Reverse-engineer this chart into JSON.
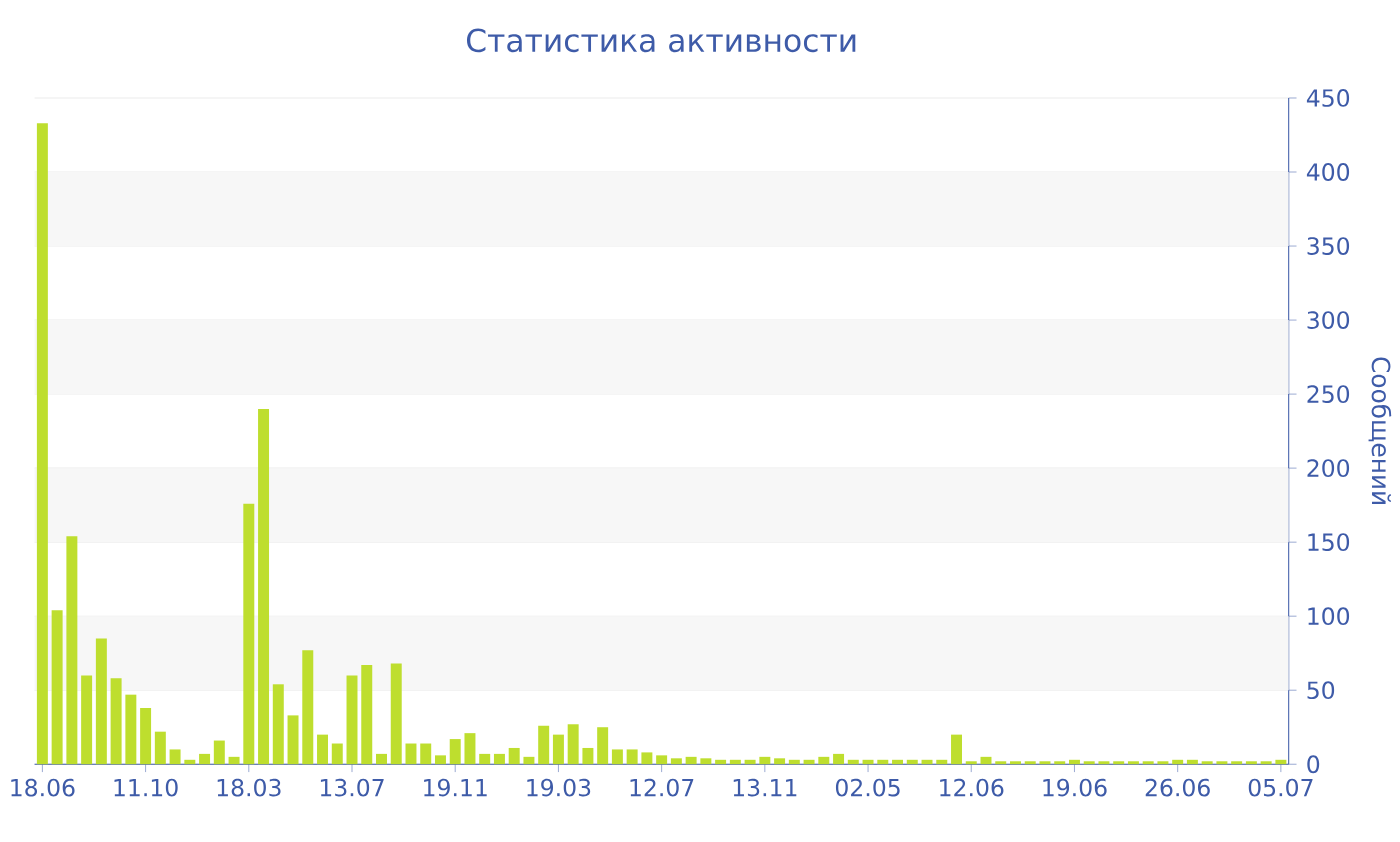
{
  "chart_data": {
    "type": "bar",
    "title": "Статистика активности",
    "ylabel": "Сообщений",
    "color": "#bede2e",
    "categories": [
      "18.06",
      null,
      null,
      null,
      null,
      null,
      null,
      "11.10",
      null,
      null,
      null,
      null,
      null,
      null,
      "18.03",
      null,
      null,
      null,
      null,
      null,
      null,
      "13.07",
      null,
      null,
      null,
      null,
      null,
      null,
      "19.11",
      null,
      null,
      null,
      null,
      null,
      null,
      "19.03",
      null,
      null,
      null,
      null,
      null,
      null,
      "12.07",
      null,
      null,
      null,
      null,
      null,
      null,
      "13.11",
      null,
      null,
      null,
      null,
      null,
      null,
      "02.05",
      null,
      null,
      null,
      null,
      null,
      null,
      "12.06",
      null,
      null,
      null,
      null,
      null,
      null,
      "19.06",
      null,
      null,
      null,
      null,
      null,
      null,
      "26.06",
      null,
      null,
      null,
      null,
      null,
      null,
      "05.07"
    ],
    "values": [
      433,
      104,
      154,
      60,
      85,
      58,
      47,
      38,
      22,
      10,
      3,
      7,
      16,
      5,
      176,
      240,
      54,
      33,
      77,
      20,
      14,
      60,
      67,
      7,
      68,
      14,
      14,
      6,
      17,
      21,
      7,
      7,
      11,
      5,
      26,
      20,
      27,
      11,
      25,
      10,
      10,
      8,
      6,
      4,
      5,
      4,
      3,
      3,
      3,
      5,
      4,
      3,
      3,
      5,
      7,
      3,
      3,
      3,
      3,
      3,
      3,
      3,
      20,
      2,
      5,
      2,
      2,
      2,
      2,
      2,
      3,
      2,
      2,
      2,
      2,
      2,
      2,
      3,
      3,
      2,
      2,
      2,
      2,
      2,
      3
    ],
    "ylim": [
      0,
      450
    ],
    "yticks": [
      0,
      50,
      100,
      150,
      200,
      250,
      300,
      350,
      400,
      450
    ],
    "grid": "y"
  }
}
